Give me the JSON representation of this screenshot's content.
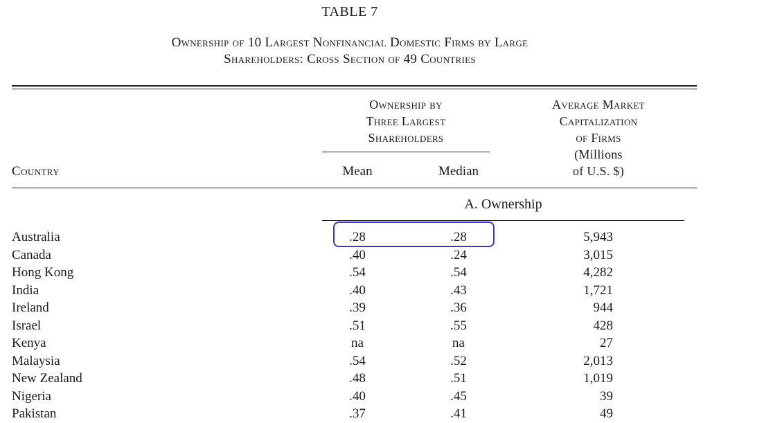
{
  "table_label": "TABLE 7",
  "caption": {
    "line1": "Ownership of 10 Largest Nonfinancial Domestic Firms by Large",
    "line2": "Shareholders: Cross Section of 49 Countries"
  },
  "headers": {
    "group": [
      "Ownership by",
      "Three Largest",
      "Shareholders"
    ],
    "mcap_sc": [
      "Average Market",
      "Capitalization",
      "of Firms"
    ],
    "mcap_plain": [
      "(Millions",
      "of U.S. $)"
    ],
    "country": "Country",
    "mean": "Mean",
    "median": "Median"
  },
  "panel_label": "A. Ownership",
  "highlight_color": "#3b35c9",
  "rows": [
    {
      "country": "Australia",
      "mean": ".28",
      "median": ".28",
      "mcap": "5,943"
    },
    {
      "country": "Canada",
      "mean": ".40",
      "median": ".24",
      "mcap": "3,015"
    },
    {
      "country": "Hong Kong",
      "mean": ".54",
      "median": ".54",
      "mcap": "4,282"
    },
    {
      "country": "India",
      "mean": ".40",
      "median": ".43",
      "mcap": "1,721"
    },
    {
      "country": "Ireland",
      "mean": ".39",
      "median": ".36",
      "mcap": "944"
    },
    {
      "country": "Israel",
      "mean": ".51",
      "median": ".55",
      "mcap": "428"
    },
    {
      "country": "Kenya",
      "mean": "na",
      "median": "na",
      "mcap": "27"
    },
    {
      "country": "Malaysia",
      "mean": ".54",
      "median": ".52",
      "mcap": "2,013"
    },
    {
      "country": "New Zealand",
      "mean": ".48",
      "median": ".51",
      "mcap": "1,019"
    },
    {
      "country": "Nigeria",
      "mean": ".40",
      "median": ".45",
      "mcap": "39"
    },
    {
      "country": "Pakistan",
      "mean": ".37",
      "median": ".41",
      "mcap": "49"
    }
  ]
}
